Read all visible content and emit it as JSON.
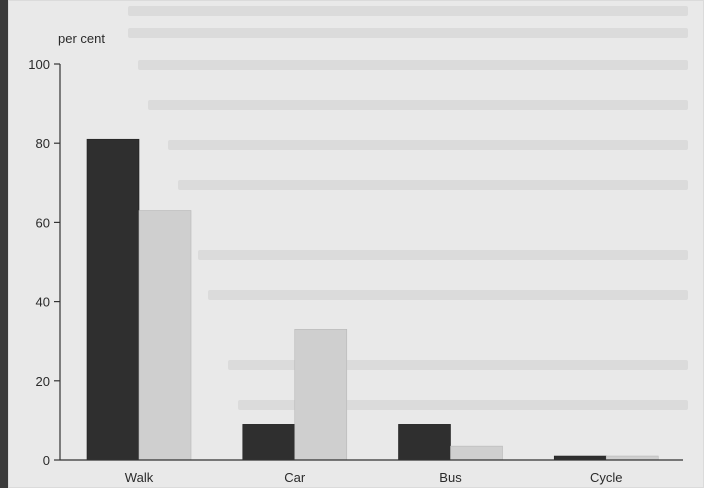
{
  "chart_data": {
    "type": "bar",
    "ylabel": "per cent",
    "categories": [
      "Walk",
      "Car",
      "Bus",
      "Cycle"
    ],
    "yticks": [
      0,
      20,
      40,
      60,
      80,
      100
    ],
    "ylim": [
      0,
      100
    ],
    "grid": false,
    "legend": "none",
    "series": [
      {
        "values": [
          81,
          9,
          9,
          1
        ],
        "color": "#2f2f2f"
      },
      {
        "values": [
          63,
          33,
          3.5,
          1
        ],
        "color": "#cfcfcf"
      }
    ]
  }
}
